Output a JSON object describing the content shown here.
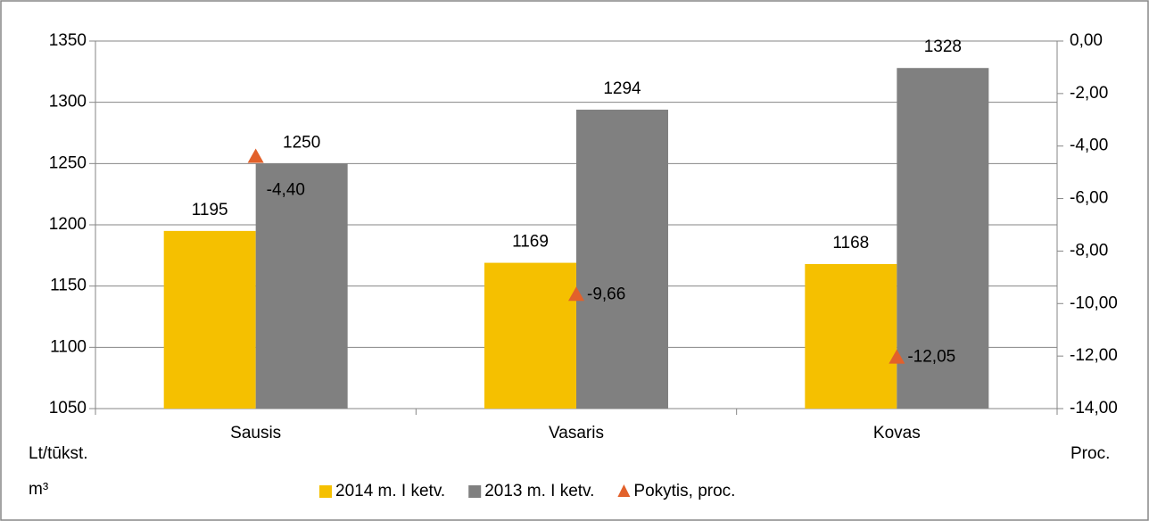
{
  "chart_data": {
    "type": "bar",
    "categories": [
      "Sausis",
      "Vasaris",
      "Kovas"
    ],
    "series": [
      {
        "name": "2014 m. I ketv.",
        "color": "#f5c000",
        "values": [
          1195,
          1169,
          1168
        ]
      },
      {
        "name": "2013 m. I ketv.",
        "color": "#808080",
        "values": [
          1250,
          1294,
          1328
        ]
      },
      {
        "name": "Pokytis, proc.",
        "color": "#e2612b",
        "axis": "y2",
        "marker": "triangle",
        "values": [
          -4.4,
          -9.66,
          -12.05
        ],
        "value_labels": [
          "-4,40",
          "-9,66",
          "-12,05"
        ]
      }
    ],
    "ylim": [
      1050,
      1350
    ],
    "yticks": [
      1050,
      1100,
      1150,
      1200,
      1250,
      1300,
      1350
    ],
    "y2lim": [
      -14,
      0
    ],
    "y2ticks": [
      {
        "value": -14,
        "label": "-14,00"
      },
      {
        "value": -12,
        "label": "-12,00"
      },
      {
        "value": -10,
        "label": "-10,00"
      },
      {
        "value": -8,
        "label": "-8,00"
      },
      {
        "value": -6,
        "label": "-6,00"
      },
      {
        "value": -4,
        "label": "-4,00"
      },
      {
        "value": -2,
        "label": "-2,00"
      },
      {
        "value": 0,
        "label": "0,00"
      }
    ],
    "ylabel": [
      "Lt/tūkst.",
      "m³"
    ],
    "y2label": "Proc.",
    "grid": true,
    "legend": "bottom"
  }
}
